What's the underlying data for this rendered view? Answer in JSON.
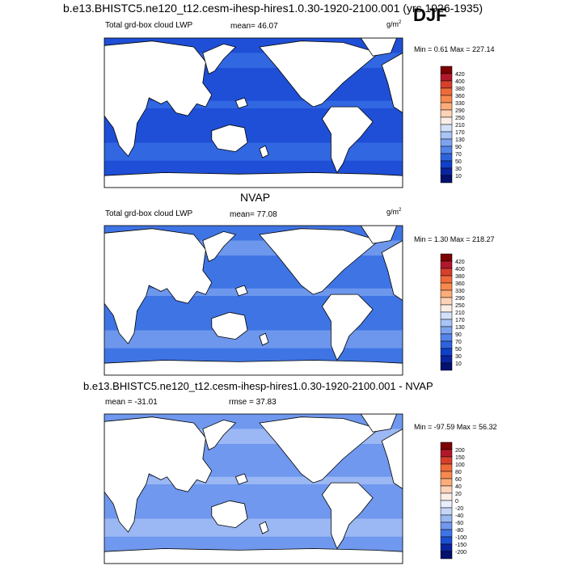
{
  "main_title": "b.e13.BHISTC5.ne120_t12.cesm-ihesp-hires1.0.30-1920-2100.001 (yrs 1926-1935)",
  "season": "DJF",
  "colors": {
    "land": "#ffffff",
    "coast": "#000000",
    "frame": "#000000"
  },
  "panels": [
    {
      "title": "",
      "variable": "Total grd-box cloud LWP",
      "stat1": "mean=  46.07",
      "stat2": "",
      "units": "g/m",
      "units_sup": "2",
      "minmax": "Min =   0.61 Max = 227.14",
      "ocean_color": "#1f4fd6",
      "band_color": "#3a6fe6",
      "land_mask": "model"
    },
    {
      "title": "NVAP",
      "variable": "Total grd-box cloud LWP",
      "stat1": "mean=  77.08",
      "stat2": "",
      "units": "g/m",
      "units_sup": "2",
      "minmax": "Min =   1.30 Max = 218.27",
      "ocean_color": "#3f74e4",
      "band_color": "#7da3f0",
      "land_mask": "obs"
    },
    {
      "title": "b.e13.BHISTC5.ne120_t12.cesm-ihesp-hires1.0.30-1920-2100.001 - NVAP",
      "variable": "mean = -31.01",
      "stat1": "rmse =  37.83",
      "stat2": "",
      "units": "",
      "units_sup": "",
      "minmax": "Min = -97.59 Max =  56.32",
      "ocean_color": "#6f98ee",
      "band_color": "#a9c3f5",
      "land_mask": "diff"
    }
  ],
  "colorbars": [
    {
      "labels": [
        "420",
        "400",
        "380",
        "360",
        "330",
        "290",
        "250",
        "210",
        "170",
        "130",
        "90",
        "70",
        "50",
        "30",
        "10"
      ],
      "colors": [
        "#7a0403",
        "#b2182b",
        "#d6402b",
        "#ef6a3a",
        "#f7894e",
        "#fbad7a",
        "#fdd3b8",
        "#fbeee6",
        "#d2e0fa",
        "#a9c3f5",
        "#7da3f0",
        "#5585ea",
        "#2f63dd",
        "#1140c8",
        "#0a24a0",
        "#03106e"
      ]
    },
    {
      "labels": [
        "420",
        "400",
        "380",
        "360",
        "330",
        "290",
        "250",
        "210",
        "170",
        "130",
        "90",
        "70",
        "50",
        "30",
        "10"
      ],
      "colors": [
        "#7a0403",
        "#b2182b",
        "#d6402b",
        "#ef6a3a",
        "#f7894e",
        "#fbad7a",
        "#fdd3b8",
        "#fbeee6",
        "#d2e0fa",
        "#a9c3f5",
        "#7da3f0",
        "#5585ea",
        "#2f63dd",
        "#1140c8",
        "#0a24a0",
        "#03106e"
      ]
    },
    {
      "labels": [
        "200",
        "150",
        "100",
        "80",
        "60",
        "40",
        "20",
        "0",
        "-20",
        "-40",
        "-60",
        "-80",
        "-100",
        "-150",
        "-200"
      ],
      "colors": [
        "#7a0403",
        "#b2182b",
        "#d6402b",
        "#ef6a3a",
        "#f7894e",
        "#fbad7a",
        "#fdd3b8",
        "#fbeee6",
        "#e8eefc",
        "#c4d5f8",
        "#9ab8f2",
        "#6f98ee",
        "#3f74e4",
        "#1a4fd2",
        "#0a24a0",
        "#03106e"
      ]
    }
  ],
  "chart_data": [
    {
      "type": "heatmap",
      "title": "",
      "variable": "Total grd-box cloud LWP",
      "mean": 46.07,
      "min": 0.61,
      "max": 227.14,
      "units": "g/m2",
      "contour_levels": [
        10,
        30,
        50,
        70,
        90,
        130,
        170,
        210,
        250,
        290,
        330,
        360,
        380,
        400,
        420
      ]
    },
    {
      "type": "heatmap",
      "title": "NVAP",
      "variable": "Total grd-box cloud LWP",
      "mean": 77.08,
      "min": 1.3,
      "max": 218.27,
      "units": "g/m2",
      "contour_levels": [
        10,
        30,
        50,
        70,
        90,
        130,
        170,
        210,
        250,
        290,
        330,
        360,
        380,
        400,
        420
      ]
    },
    {
      "type": "heatmap",
      "title": "b.e13.BHISTC5.ne120_t12.cesm-ihesp-hires1.0.30-1920-2100.001 - NVAP",
      "mean": -31.01,
      "rmse": 37.83,
      "min": -97.59,
      "max": 56.32,
      "contour_levels": [
        -200,
        -150,
        -100,
        -80,
        -60,
        -40,
        -20,
        0,
        20,
        40,
        60,
        80,
        100,
        150,
        200
      ]
    }
  ]
}
